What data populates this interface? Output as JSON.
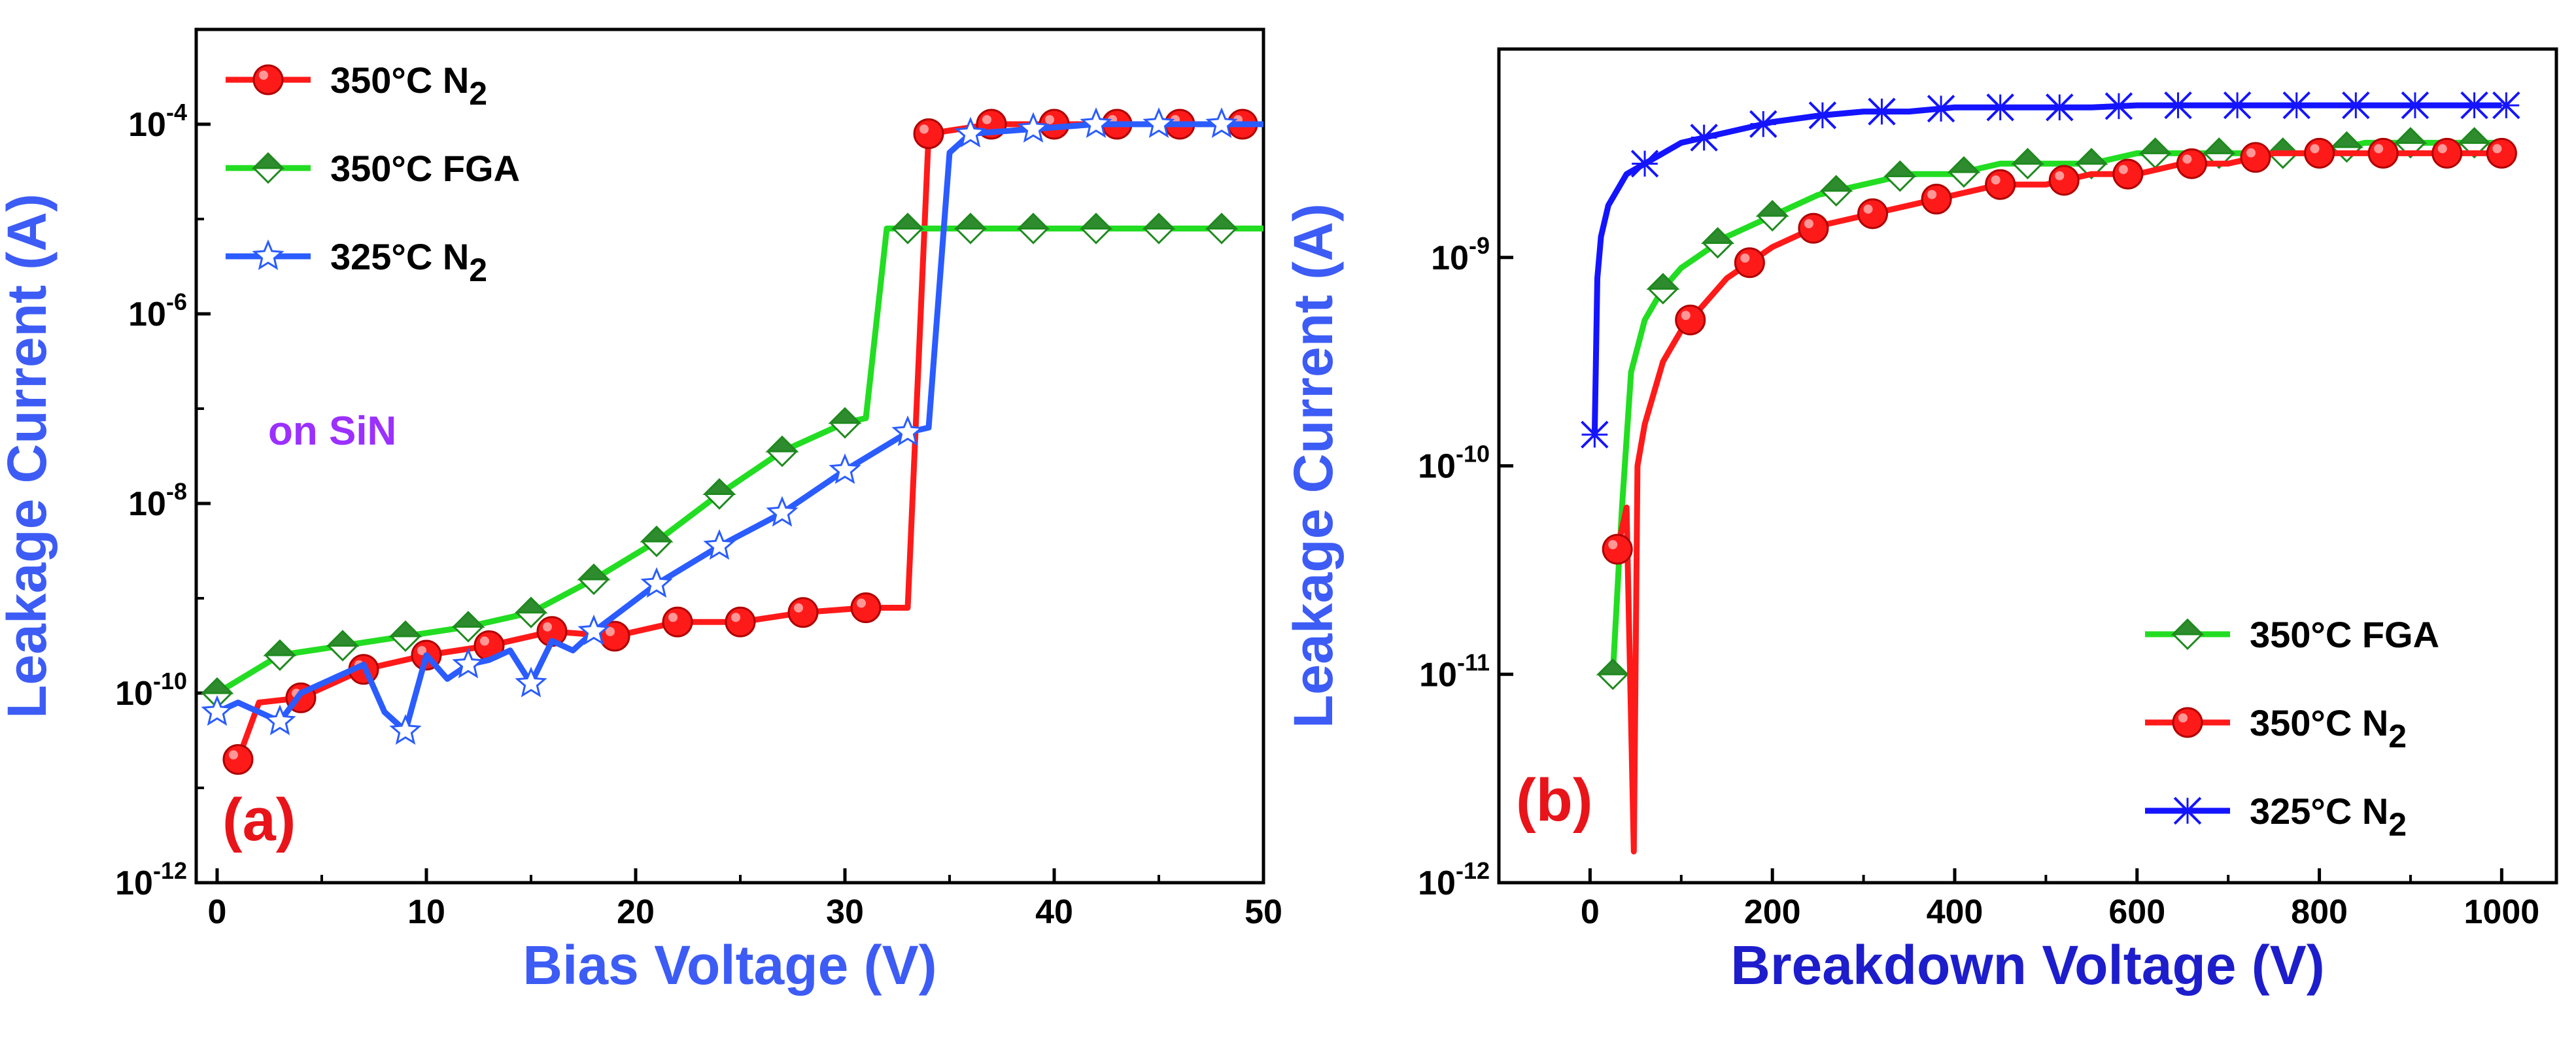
{
  "chart_data": [
    {
      "type": "line",
      "panel_label": "(a)",
      "annotation": "on SiN",
      "xlabel": "Bias Voltage (V)",
      "ylabel": "Leakage Current (A)",
      "xlim": [
        -1,
        50
      ],
      "ylim_log10": [
        -12,
        -3
      ],
      "yscale": "log",
      "xticks": [
        0,
        10,
        20,
        30,
        40,
        50
      ],
      "xtick_labels": [
        "0",
        "10",
        "20",
        "30",
        "40",
        "50"
      ],
      "yticks_log10": [
        -12,
        -10,
        -8,
        -6,
        -4
      ],
      "ytick_labels": [
        {
          "base": "10",
          "exp": "-12"
        },
        {
          "base": "10",
          "exp": "-10"
        },
        {
          "base": "10",
          "exp": "-8"
        },
        {
          "base": "10",
          "exp": "-6"
        },
        {
          "base": "10",
          "exp": "-4"
        }
      ],
      "legend_position": "top-left",
      "series": [
        {
          "name": "350°C N2",
          "legend": {
            "main": "350°C N",
            "sub": "2"
          },
          "color": "#ff1a1a",
          "marker": "circle",
          "x": [
            1,
            2,
            4,
            7,
            10,
            13,
            16,
            19,
            22,
            25,
            28,
            31,
            33,
            34,
            37,
            40,
            43,
            46,
            49,
            50
          ],
          "y_log10": [
            -10.7,
            -10.1,
            -10.05,
            -9.75,
            -9.6,
            -9.5,
            -9.35,
            -9.4,
            -9.25,
            -9.25,
            -9.15,
            -9.1,
            -9.1,
            -4.1,
            -4.0,
            -4.0,
            -4.0,
            -4.0,
            -4.0,
            -4.0
          ],
          "marker_x": [
            1,
            4,
            7,
            10,
            13,
            16,
            19,
            22,
            25,
            28,
            31,
            34,
            37,
            40,
            43,
            46,
            49
          ]
        },
        {
          "name": "350°C FGA",
          "legend": {
            "main": "350°C FGA",
            "sub": ""
          },
          "color": "#22dd22",
          "marker": "diamond",
          "x": [
            0,
            3,
            6,
            9,
            12,
            15,
            18,
            21,
            24,
            27,
            30,
            31,
            32,
            33,
            36,
            39,
            42,
            45,
            48,
            50
          ],
          "y_log10": [
            -10.0,
            -9.6,
            -9.5,
            -9.4,
            -9.3,
            -9.15,
            -8.8,
            -8.4,
            -7.9,
            -7.45,
            -7.15,
            -7.1,
            -5.1,
            -5.1,
            -5.1,
            -5.1,
            -5.1,
            -5.1,
            -5.1,
            -5.1
          ],
          "marker_x": [
            0,
            3,
            6,
            9,
            12,
            15,
            18,
            21,
            24,
            27,
            30,
            33,
            36,
            39,
            42,
            45,
            48
          ]
        },
        {
          "name": "325°C N2",
          "legend": {
            "main": "325°C N",
            "sub": "2"
          },
          "color": "#2a5cff",
          "marker": "star",
          "x": [
            0,
            1,
            3,
            4,
            6,
            7,
            8,
            9,
            10,
            11,
            12,
            13,
            14,
            15,
            16,
            17,
            18,
            21,
            24,
            27,
            30,
            33,
            34,
            35,
            36,
            39,
            42,
            45,
            48,
            50
          ],
          "y_log10": [
            -10.2,
            -10.1,
            -10.3,
            -10.0,
            -9.8,
            -9.7,
            -10.2,
            -10.4,
            -9.6,
            -9.85,
            -9.7,
            -9.65,
            -9.55,
            -9.9,
            -9.45,
            -9.55,
            -9.35,
            -8.85,
            -8.45,
            -8.1,
            -7.65,
            -7.25,
            -7.2,
            -4.3,
            -4.1,
            -4.05,
            -4.0,
            -4.0,
            -4.0,
            -4.0
          ],
          "marker_x": [
            0,
            3,
            9,
            12,
            15,
            18,
            21,
            24,
            27,
            30,
            33,
            36,
            39,
            42,
            45,
            48
          ]
        }
      ]
    },
    {
      "type": "line",
      "panel_label": "(b)",
      "xlabel": "Breakdown Voltage (V)",
      "ylabel": "Leakage Current (A)",
      "xlim": [
        -100,
        1060
      ],
      "ylim_log10": [
        -12,
        -8
      ],
      "yscale": "log",
      "xticks": [
        0,
        200,
        400,
        600,
        800,
        1000
      ],
      "xtick_labels": [
        "0",
        "200",
        "400",
        "600",
        "800",
        "1000"
      ],
      "yticks_log10": [
        -12,
        -11,
        -10,
        -9
      ],
      "ytick_labels": [
        {
          "base": "10",
          "exp": "-12"
        },
        {
          "base": "10",
          "exp": "-11"
        },
        {
          "base": "10",
          "exp": "-10"
        },
        {
          "base": "10",
          "exp": "-9"
        }
      ],
      "legend_position": "bottom-right",
      "series": [
        {
          "name": "350°C FGA",
          "legend": {
            "main": "350°C FGA",
            "sub": ""
          },
          "color": "#22dd22",
          "marker": "diamond",
          "x": [
            25,
            35,
            45,
            60,
            80,
            100,
            150,
            200,
            250,
            300,
            350,
            400,
            450,
            500,
            550,
            600,
            650,
            700,
            750,
            800,
            850,
            900,
            950,
            1000
          ],
          "y_log10": [
            -11.0,
            -10.2,
            -9.55,
            -9.3,
            -9.15,
            -9.05,
            -8.9,
            -8.8,
            -8.7,
            -8.65,
            -8.6,
            -8.6,
            -8.55,
            -8.55,
            -8.55,
            -8.5,
            -8.5,
            -8.5,
            -8.5,
            -8.5,
            -8.45,
            -8.45,
            -8.45,
            -8.45
          ],
          "marker_x": [
            25,
            80,
            140,
            200,
            270,
            340,
            410,
            480,
            550,
            620,
            690,
            760,
            830,
            900,
            970
          ]
        },
        {
          "name": "350°C N2",
          "legend": {
            "main": "350°C N",
            "sub": "2"
          },
          "color": "#ff1a1a",
          "marker": "circle",
          "x": [
            30,
            40,
            48,
            52,
            60,
            80,
            100,
            150,
            200,
            250,
            300,
            350,
            400,
            450,
            500,
            550,
            600,
            650,
            700,
            750,
            800,
            850,
            900,
            950,
            1000
          ],
          "y_log10": [
            -10.4,
            -10.2,
            -11.85,
            -10.0,
            -9.8,
            -9.5,
            -9.35,
            -9.1,
            -8.95,
            -8.85,
            -8.8,
            -8.75,
            -8.7,
            -8.65,
            -8.65,
            -8.6,
            -8.6,
            -8.55,
            -8.55,
            -8.5,
            -8.5,
            -8.5,
            -8.5,
            -8.5,
            -8.5
          ],
          "marker_x": [
            30,
            110,
            175,
            245,
            310,
            380,
            450,
            520,
            590,
            660,
            730,
            800,
            870,
            940,
            1000
          ]
        },
        {
          "name": "325°C N2",
          "legend": {
            "main": "325°C N",
            "sub": "2"
          },
          "color": "#1414ff",
          "marker": "x-star",
          "x": [
            5,
            8,
            12,
            20,
            40,
            60,
            80,
            100,
            150,
            200,
            250,
            300,
            350,
            400,
            450,
            500,
            550,
            600,
            650,
            700,
            750,
            800,
            850,
            900,
            950,
            1000
          ],
          "y_log10": [
            -9.85,
            -9.1,
            -8.9,
            -8.75,
            -8.6,
            -8.55,
            -8.5,
            -8.45,
            -8.4,
            -8.35,
            -8.32,
            -8.3,
            -8.3,
            -8.28,
            -8.28,
            -8.28,
            -8.28,
            -8.27,
            -8.27,
            -8.27,
            -8.27,
            -8.27,
            -8.27,
            -8.27,
            -8.27,
            -8.27
          ],
          "marker_x": [
            5,
            60,
            125,
            190,
            255,
            320,
            385,
            450,
            515,
            580,
            645,
            710,
            775,
            840,
            905,
            970,
            1005
          ]
        }
      ]
    }
  ]
}
